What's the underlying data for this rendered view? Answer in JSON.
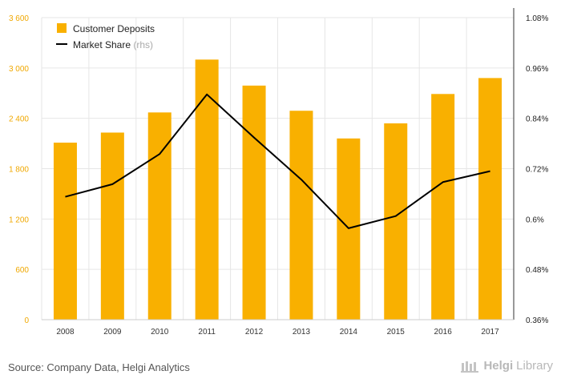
{
  "chart_data": {
    "type": "bar",
    "categories": [
      "2008",
      "2009",
      "2010",
      "2011",
      "2012",
      "2013",
      "2014",
      "2015",
      "2016",
      "2017"
    ],
    "series": [
      {
        "name": "Customer Deposits",
        "type": "bar",
        "axis": "left",
        "color": "#f9b000",
        "values": [
          2110,
          2230,
          2470,
          3100,
          2790,
          2490,
          2160,
          2340,
          2690,
          2880
        ]
      },
      {
        "name": "Market Share",
        "name_suffix": "(rhs)",
        "type": "line",
        "axis": "right",
        "color": "#000000",
        "values": [
          0.653,
          0.683,
          0.755,
          0.897,
          0.794,
          0.694,
          0.578,
          0.607,
          0.688,
          0.714
        ]
      }
    ],
    "y_left": {
      "min": 0,
      "max": 3600,
      "ticks": [
        0,
        600,
        1200,
        1800,
        2400,
        3000,
        3600
      ],
      "tick_labels": [
        "0",
        "600",
        "1 200",
        "1 800",
        "2 400",
        "3 000",
        "3 600"
      ]
    },
    "y_right": {
      "min": 0.36,
      "max": 1.08,
      "ticks": [
        0.36,
        0.48,
        0.6,
        0.72,
        0.84,
        0.96,
        1.08
      ],
      "tick_labels": [
        "0.36%",
        "0.48%",
        "0.6%",
        "0.72%",
        "0.84%",
        "0.96%",
        "1.08%"
      ]
    },
    "legend_position": "top-left",
    "grid": true
  },
  "footer": {
    "source": "Source: Company Data, Helgi Analytics",
    "logo_name": "Helgi",
    "logo_suffix": "Library"
  },
  "colors": {
    "bar": "#f9b000",
    "line": "#000000",
    "left_axis_text": "#f0a800",
    "grid": "#e6e6e6"
  }
}
